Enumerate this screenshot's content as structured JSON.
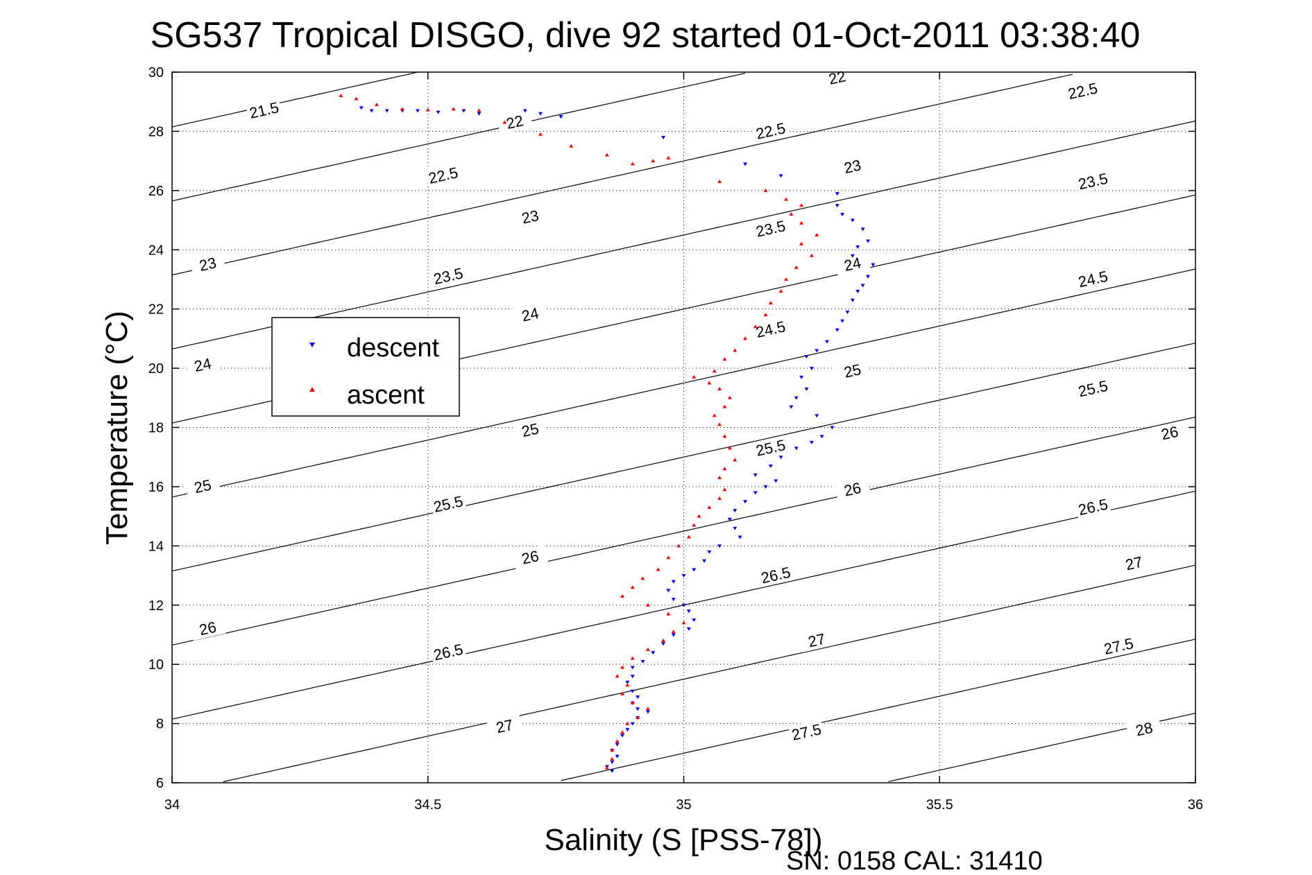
{
  "chart_data": {
    "type": "scatter",
    "title": "SG537 Tropical DISGO, dive 92 started 01-Oct-2011 03:38:40",
    "xlabel": "Salinity (S [PSS-78])",
    "ylabel": "Temperature (°C)",
    "xlim": [
      34,
      36
    ],
    "ylim": [
      6,
      30
    ],
    "xticks": [
      "34",
      "34.5",
      "35",
      "35.5",
      "36"
    ],
    "yticks": [
      "6",
      "8",
      "10",
      "12",
      "14",
      "16",
      "18",
      "20",
      "22",
      "24",
      "26",
      "28",
      "30"
    ],
    "grid": true,
    "legend_position": "upper-left",
    "footer": "SN: 0158  CAL: 31410",
    "contours": {
      "levels": [
        "21.5",
        "22",
        "22.5",
        "23",
        "23.5",
        "24",
        "24.5",
        "25",
        "25.5",
        "26",
        "26.5",
        "27",
        "27.5",
        "28"
      ],
      "labels": [
        {
          "text": "21.5",
          "s": 34.18,
          "t": 28.7
        },
        {
          "text": "22",
          "s": 34.67,
          "t": 28.3
        },
        {
          "text": "22",
          "s": 35.3,
          "t": 29.8
        },
        {
          "text": "22.5",
          "s": 35.78,
          "t": 29.35
        },
        {
          "text": "22.5",
          "s": 34.53,
          "t": 26.5
        },
        {
          "text": "22.5",
          "s": 35.17,
          "t": 28.0
        },
        {
          "text": "23",
          "s": 34.07,
          "t": 23.5
        },
        {
          "text": "23",
          "s": 34.7,
          "t": 25.1
        },
        {
          "text": "23",
          "s": 35.33,
          "t": 26.8
        },
        {
          "text": "23.5",
          "s": 34.54,
          "t": 23.1
        },
        {
          "text": "23.5",
          "s": 35.17,
          "t": 24.7
        },
        {
          "text": "23.5",
          "s": 35.8,
          "t": 26.3
        },
        {
          "text": "24",
          "s": 34.06,
          "t": 20.1
        },
        {
          "text": "24",
          "s": 34.7,
          "t": 21.8
        },
        {
          "text": "24",
          "s": 35.33,
          "t": 23.5
        },
        {
          "text": "24.5",
          "s": 35.17,
          "t": 21.3
        },
        {
          "text": "24.5",
          "s": 35.8,
          "t": 23.0
        },
        {
          "text": "25",
          "s": 34.06,
          "t": 16.0
        },
        {
          "text": "25",
          "s": 34.7,
          "t": 17.9
        },
        {
          "text": "25",
          "s": 35.33,
          "t": 19.9
        },
        {
          "text": "25.5",
          "s": 34.54,
          "t": 15.4
        },
        {
          "text": "25.5",
          "s": 35.17,
          "t": 17.3
        },
        {
          "text": "25.5",
          "s": 35.8,
          "t": 19.3
        },
        {
          "text": "26",
          "s": 34.07,
          "t": 11.2
        },
        {
          "text": "26",
          "s": 34.7,
          "t": 13.6
        },
        {
          "text": "26",
          "s": 35.33,
          "t": 15.9
        },
        {
          "text": "26",
          "s": 35.95,
          "t": 17.8
        },
        {
          "text": "26.5",
          "s": 34.54,
          "t": 10.4
        },
        {
          "text": "26.5",
          "s": 35.18,
          "t": 13.0
        },
        {
          "text": "26.5",
          "s": 35.8,
          "t": 15.3
        },
        {
          "text": "27",
          "s": 34.65,
          "t": 7.9
        },
        {
          "text": "27",
          "s": 35.26,
          "t": 10.8
        },
        {
          "text": "27",
          "s": 35.88,
          "t": 13.4
        },
        {
          "text": "27.5",
          "s": 35.24,
          "t": 7.7
        },
        {
          "text": "27.5",
          "s": 35.85,
          "t": 10.6
        },
        {
          "text": "28",
          "s": 35.9,
          "t": 7.8
        }
      ]
    },
    "series": [
      {
        "name": "descent",
        "color": "#0000ff",
        "marker": "down-triangle",
        "points": [
          [
            34.37,
            28.8
          ],
          [
            34.39,
            28.7
          ],
          [
            34.42,
            28.7
          ],
          [
            34.45,
            28.7
          ],
          [
            34.48,
            28.7
          ],
          [
            34.52,
            28.65
          ],
          [
            34.57,
            28.7
          ],
          [
            34.6,
            28.6
          ],
          [
            34.69,
            28.7
          ],
          [
            34.72,
            28.6
          ],
          [
            34.76,
            28.5
          ],
          [
            34.96,
            27.8
          ],
          [
            35.12,
            26.9
          ],
          [
            35.19,
            26.5
          ],
          [
            35.3,
            25.9
          ],
          [
            35.3,
            25.5
          ],
          [
            35.31,
            25.2
          ],
          [
            35.33,
            25.0
          ],
          [
            35.35,
            24.7
          ],
          [
            35.36,
            24.3
          ],
          [
            35.34,
            24.1
          ],
          [
            35.33,
            23.8
          ],
          [
            35.37,
            23.5
          ],
          [
            35.36,
            23.1
          ],
          [
            35.35,
            22.8
          ],
          [
            35.34,
            22.6
          ],
          [
            35.33,
            22.3
          ],
          [
            35.32,
            21.9
          ],
          [
            35.31,
            21.6
          ],
          [
            35.3,
            21.3
          ],
          [
            35.28,
            20.9
          ],
          [
            35.26,
            20.6
          ],
          [
            35.24,
            20.4
          ],
          [
            35.25,
            20.0
          ],
          [
            35.23,
            19.7
          ],
          [
            35.24,
            19.3
          ],
          [
            35.22,
            19.0
          ],
          [
            35.21,
            18.7
          ],
          [
            35.26,
            18.4
          ],
          [
            35.29,
            18.0
          ],
          [
            35.27,
            17.7
          ],
          [
            35.25,
            17.5
          ],
          [
            35.22,
            17.3
          ],
          [
            35.19,
            17.0
          ],
          [
            35.17,
            16.7
          ],
          [
            35.14,
            16.4
          ],
          [
            35.18,
            16.2
          ],
          [
            35.16,
            16.0
          ],
          [
            35.14,
            15.8
          ],
          [
            35.12,
            15.5
          ],
          [
            35.1,
            15.2
          ],
          [
            35.09,
            14.9
          ],
          [
            35.1,
            14.6
          ],
          [
            35.11,
            14.3
          ],
          [
            35.07,
            14.0
          ],
          [
            35.05,
            13.8
          ],
          [
            35.04,
            13.5
          ],
          [
            35.02,
            13.2
          ],
          [
            35.0,
            13.0
          ],
          [
            34.98,
            12.8
          ],
          [
            34.97,
            12.5
          ],
          [
            34.98,
            12.2
          ],
          [
            35.0,
            12.0
          ],
          [
            35.01,
            11.8
          ],
          [
            35.02,
            11.5
          ],
          [
            35.01,
            11.2
          ],
          [
            34.98,
            11.0
          ],
          [
            34.96,
            10.7
          ],
          [
            34.94,
            10.4
          ],
          [
            34.92,
            10.1
          ],
          [
            34.9,
            9.9
          ],
          [
            34.9,
            9.6
          ],
          [
            34.89,
            9.4
          ],
          [
            34.9,
            9.1
          ],
          [
            34.91,
            8.9
          ],
          [
            34.9,
            8.7
          ],
          [
            34.91,
            8.5
          ],
          [
            34.93,
            8.4
          ],
          [
            34.91,
            8.2
          ],
          [
            34.9,
            8.0
          ],
          [
            34.89,
            7.8
          ],
          [
            34.88,
            7.6
          ],
          [
            34.87,
            7.3
          ],
          [
            34.86,
            7.1
          ],
          [
            34.87,
            6.9
          ],
          [
            34.86,
            6.7
          ],
          [
            34.85,
            6.55
          ],
          [
            34.86,
            6.4
          ]
        ]
      },
      {
        "name": "ascent",
        "color": "#ff0000",
        "marker": "up-triangle",
        "points": [
          [
            34.33,
            29.2
          ],
          [
            34.36,
            29.1
          ],
          [
            34.4,
            28.9
          ],
          [
            34.45,
            28.75
          ],
          [
            34.5,
            28.72
          ],
          [
            34.55,
            28.75
          ],
          [
            34.6,
            28.7
          ],
          [
            34.65,
            28.3
          ],
          [
            34.72,
            27.9
          ],
          [
            34.78,
            27.5
          ],
          [
            34.85,
            27.2
          ],
          [
            34.9,
            26.9
          ],
          [
            34.94,
            27.0
          ],
          [
            34.97,
            27.1
          ],
          [
            35.07,
            26.3
          ],
          [
            35.16,
            26.0
          ],
          [
            35.2,
            25.7
          ],
          [
            35.23,
            25.5
          ],
          [
            35.21,
            25.2
          ],
          [
            35.23,
            24.9
          ],
          [
            35.26,
            24.5
          ],
          [
            35.23,
            24.2
          ],
          [
            35.25,
            23.8
          ],
          [
            35.22,
            23.4
          ],
          [
            35.2,
            23.0
          ],
          [
            35.19,
            22.6
          ],
          [
            35.17,
            22.2
          ],
          [
            35.16,
            21.8
          ],
          [
            35.14,
            21.4
          ],
          [
            35.12,
            21.0
          ],
          [
            35.1,
            20.6
          ],
          [
            35.08,
            20.3
          ],
          [
            35.06,
            19.9
          ],
          [
            35.02,
            19.7
          ],
          [
            35.05,
            19.5
          ],
          [
            35.07,
            19.3
          ],
          [
            35.09,
            19.0
          ],
          [
            35.08,
            18.7
          ],
          [
            35.06,
            18.4
          ],
          [
            35.07,
            18.1
          ],
          [
            35.08,
            17.7
          ],
          [
            35.09,
            17.3
          ],
          [
            35.1,
            16.9
          ],
          [
            35.08,
            16.6
          ],
          [
            35.07,
            16.3
          ],
          [
            35.08,
            15.9
          ],
          [
            35.07,
            15.6
          ],
          [
            35.05,
            15.3
          ],
          [
            35.03,
            15.0
          ],
          [
            35.02,
            14.7
          ],
          [
            35.01,
            14.3
          ],
          [
            34.99,
            14.0
          ],
          [
            34.97,
            13.6
          ],
          [
            34.95,
            13.2
          ],
          [
            34.92,
            12.9
          ],
          [
            34.9,
            12.6
          ],
          [
            34.88,
            12.3
          ],
          [
            34.93,
            12.0
          ],
          [
            34.97,
            11.7
          ],
          [
            35.0,
            11.4
          ],
          [
            34.98,
            11.1
          ],
          [
            34.96,
            10.8
          ],
          [
            34.93,
            10.5
          ],
          [
            34.9,
            10.2
          ],
          [
            34.88,
            9.9
          ],
          [
            34.87,
            9.6
          ],
          [
            34.89,
            9.3
          ],
          [
            34.88,
            9.0
          ],
          [
            34.9,
            8.7
          ],
          [
            34.93,
            8.5
          ],
          [
            34.91,
            8.2
          ],
          [
            34.89,
            8.0
          ],
          [
            34.88,
            7.7
          ],
          [
            34.87,
            7.4
          ],
          [
            34.86,
            7.1
          ],
          [
            34.86,
            6.8
          ],
          [
            34.85,
            6.5
          ]
        ]
      }
    ]
  }
}
